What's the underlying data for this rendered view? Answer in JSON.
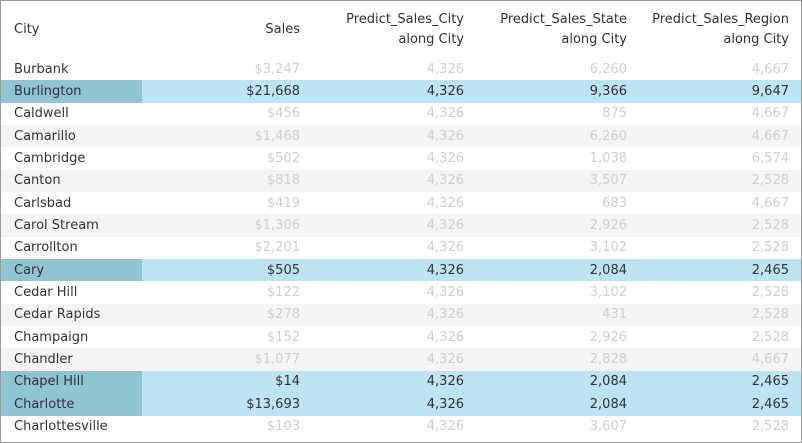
{
  "table": {
    "headers": {
      "city": "City",
      "sales": "Sales",
      "city_pred": [
        "Predict_Sales_City",
        "along City"
      ],
      "state_pred": [
        "Predict_Sales_State",
        "along City"
      ],
      "region_pred": [
        "Predict_Sales_Region",
        "along City"
      ]
    },
    "rows": [
      {
        "city": "Burbank",
        "sales": "$3,247",
        "city_pred": "4,326",
        "state_pred": "6,260",
        "region_pred": "4,667",
        "selected": false
      },
      {
        "city": "Burlington",
        "sales": "$21,668",
        "city_pred": "4,326",
        "state_pred": "9,366",
        "region_pred": "9,647",
        "selected": true
      },
      {
        "city": "Caldwell",
        "sales": "$456",
        "city_pred": "4,326",
        "state_pred": "875",
        "region_pred": "4,667",
        "selected": false
      },
      {
        "city": "Camarillo",
        "sales": "$1,468",
        "city_pred": "4,326",
        "state_pred": "6,260",
        "region_pred": "4,667",
        "selected": false
      },
      {
        "city": "Cambridge",
        "sales": "$502",
        "city_pred": "4,326",
        "state_pred": "1,038",
        "region_pred": "6,574",
        "selected": false
      },
      {
        "city": "Canton",
        "sales": "$818",
        "city_pred": "4,326",
        "state_pred": "3,507",
        "region_pred": "2,528",
        "selected": false
      },
      {
        "city": "Carlsbad",
        "sales": "$419",
        "city_pred": "4,326",
        "state_pred": "683",
        "region_pred": "4,667",
        "selected": false
      },
      {
        "city": "Carol Stream",
        "sales": "$1,306",
        "city_pred": "4,326",
        "state_pred": "2,926",
        "region_pred": "2,528",
        "selected": false
      },
      {
        "city": "Carrollton",
        "sales": "$2,201",
        "city_pred": "4,326",
        "state_pred": "3,102",
        "region_pred": "2,528",
        "selected": false
      },
      {
        "city": "Cary",
        "sales": "$505",
        "city_pred": "4,326",
        "state_pred": "2,084",
        "region_pred": "2,465",
        "selected": true
      },
      {
        "city": "Cedar Hill",
        "sales": "$122",
        "city_pred": "4,326",
        "state_pred": "3,102",
        "region_pred": "2,528",
        "selected": false
      },
      {
        "city": "Cedar Rapids",
        "sales": "$278",
        "city_pred": "4,326",
        "state_pred": "431",
        "region_pred": "2,528",
        "selected": false
      },
      {
        "city": "Champaign",
        "sales": "$152",
        "city_pred": "4,326",
        "state_pred": "2,926",
        "region_pred": "2,528",
        "selected": false
      },
      {
        "city": "Chandler",
        "sales": "$1,077",
        "city_pred": "4,326",
        "state_pred": "2,828",
        "region_pred": "4,667",
        "selected": false
      },
      {
        "city": "Chapel Hill",
        "sales": "$14",
        "city_pred": "4,326",
        "state_pred": "2,084",
        "region_pred": "2,465",
        "selected": true
      },
      {
        "city": "Charlotte",
        "sales": "$13,693",
        "city_pred": "4,326",
        "state_pred": "2,084",
        "region_pred": "2,465",
        "selected": true
      },
      {
        "city": "Charlottesville",
        "sales": "$103",
        "city_pred": "4,326",
        "state_pred": "3,607",
        "region_pred": "2,528",
        "selected": false
      }
    ]
  },
  "colors": {
    "selected_row": "#bde4f2",
    "selected_city_cell": "#8fc4d2",
    "alt_row": "#f4f4f4",
    "muted_text": "#cfcfcf",
    "text": "#333333"
  }
}
